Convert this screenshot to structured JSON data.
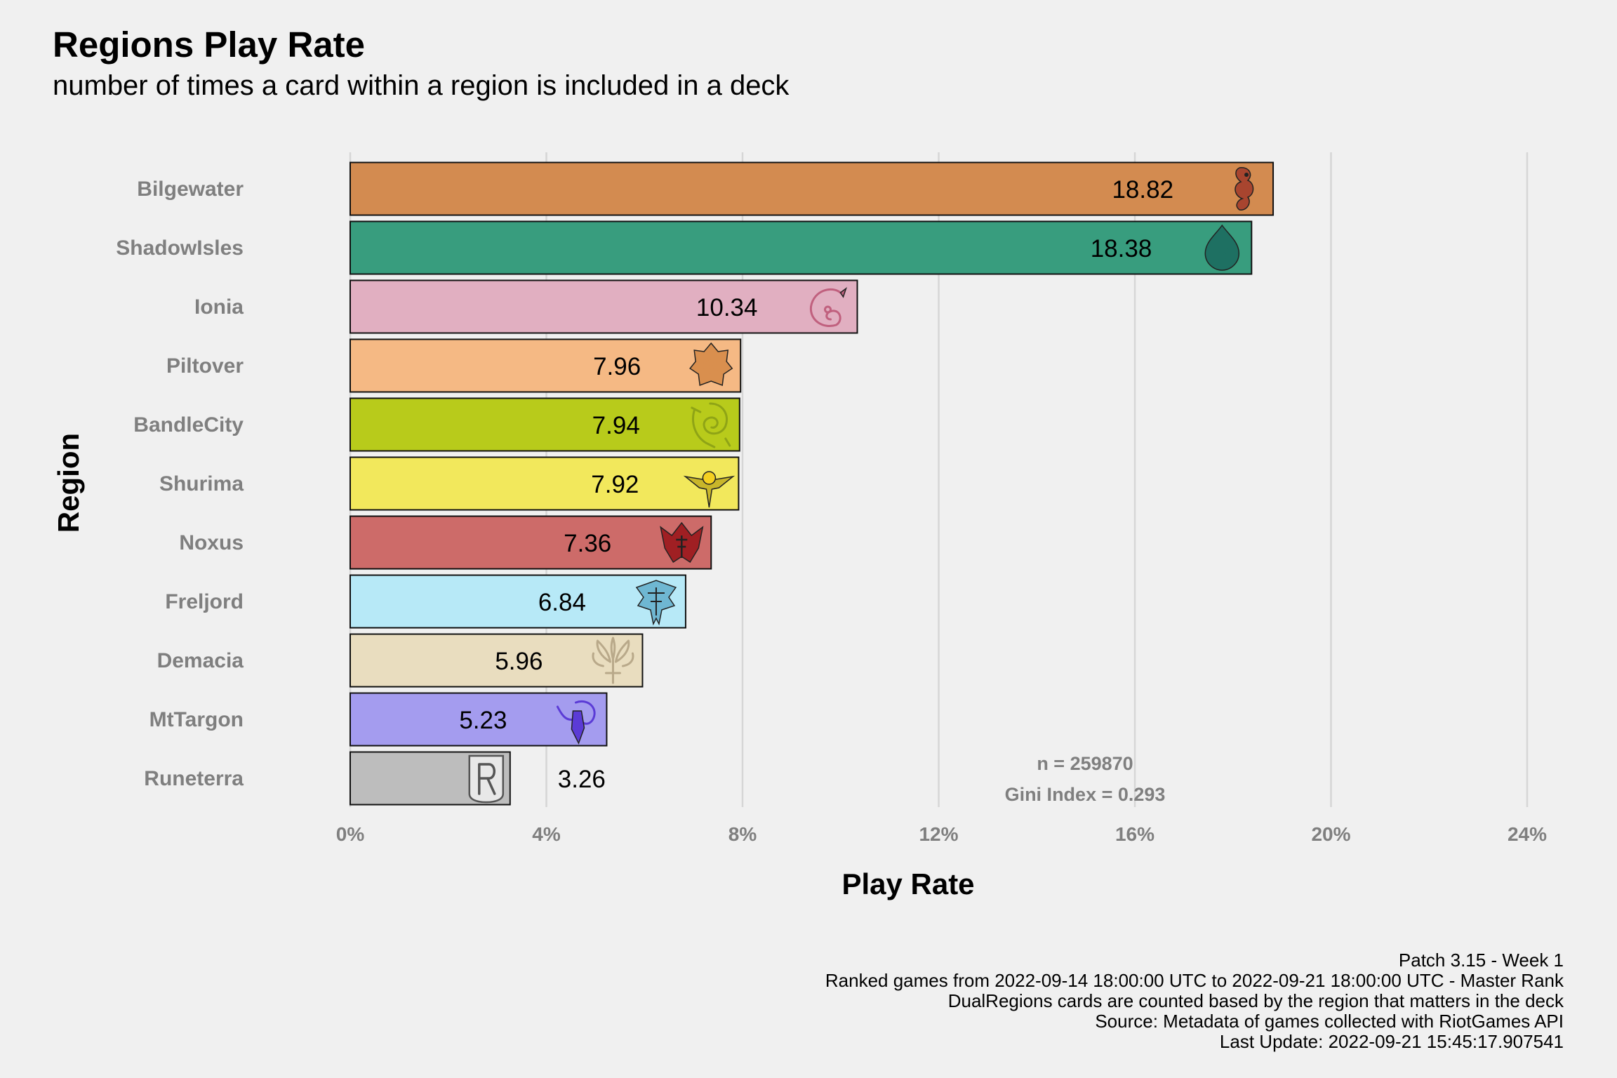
{
  "chart_data": {
    "type": "bar",
    "orientation": "horizontal",
    "title": "Regions Play Rate",
    "subtitle": "number of times a card within a region is included in a deck",
    "xlabel": "Play Rate",
    "ylabel": "Region",
    "categories": [
      "Bilgewater",
      "ShadowIsles",
      "Ionia",
      "Piltover",
      "BandleCity",
      "Shurima",
      "Noxus",
      "Freljord",
      "Demacia",
      "MtTargon",
      "Runeterra"
    ],
    "values": [
      18.82,
      18.38,
      10.34,
      7.96,
      7.94,
      7.92,
      7.36,
      6.84,
      5.96,
      5.23,
      3.26
    ],
    "value_labels": [
      "18.82",
      "18.38",
      "10.34",
      "7.96",
      "7.94",
      "7.92",
      "7.36",
      "6.84",
      "5.96",
      "5.23",
      "3.26"
    ],
    "colors": [
      "#D38B50",
      "#389D7E",
      "#E1AFC1",
      "#F5B984",
      "#B8CB1B",
      "#F2E85C",
      "#CD6B69",
      "#B7E9F7",
      "#E9DDBF",
      "#A49CEF",
      "#BDBDBD"
    ],
    "icon_colors": [
      "#A8452F",
      "#1E7062",
      "#C0607E",
      "#D98F4E",
      "#8FA416",
      "#C9B62A",
      "#A01F23",
      "#6FB7D2",
      "#B9A98A",
      "#5B3BD6",
      "#8E8E8E"
    ],
    "icons": [
      "bilgewater-icon",
      "shadowisles-icon",
      "ionia-icon",
      "piltover-icon",
      "bandlecity-icon",
      "shurima-icon",
      "noxus-icon",
      "freljord-icon",
      "demacia-icon",
      "mttargon-icon",
      "runeterra-icon"
    ],
    "xlim": [
      0,
      24
    ],
    "xticks": [
      0,
      4,
      8,
      12,
      16,
      20,
      24
    ],
    "xtick_labels": [
      "0%",
      "4%",
      "8%",
      "12%",
      "16%",
      "20%",
      "24%"
    ],
    "grid": "vertical major gridlines",
    "annotations": [
      "n = 259870",
      "Gini Index = 0.293"
    ]
  },
  "caption": [
    "Patch 3.15 - Week 1",
    "Ranked games from 2022-09-14 18:00:00 UTC to 2022-09-21 18:00:00 UTC - Master Rank",
    "DualRegions cards are counted based by the region that matters in the deck",
    "Source: Metadata of games collected with RiotGames API",
    "Last Update: 2022-09-21 15:45:17.907541"
  ]
}
